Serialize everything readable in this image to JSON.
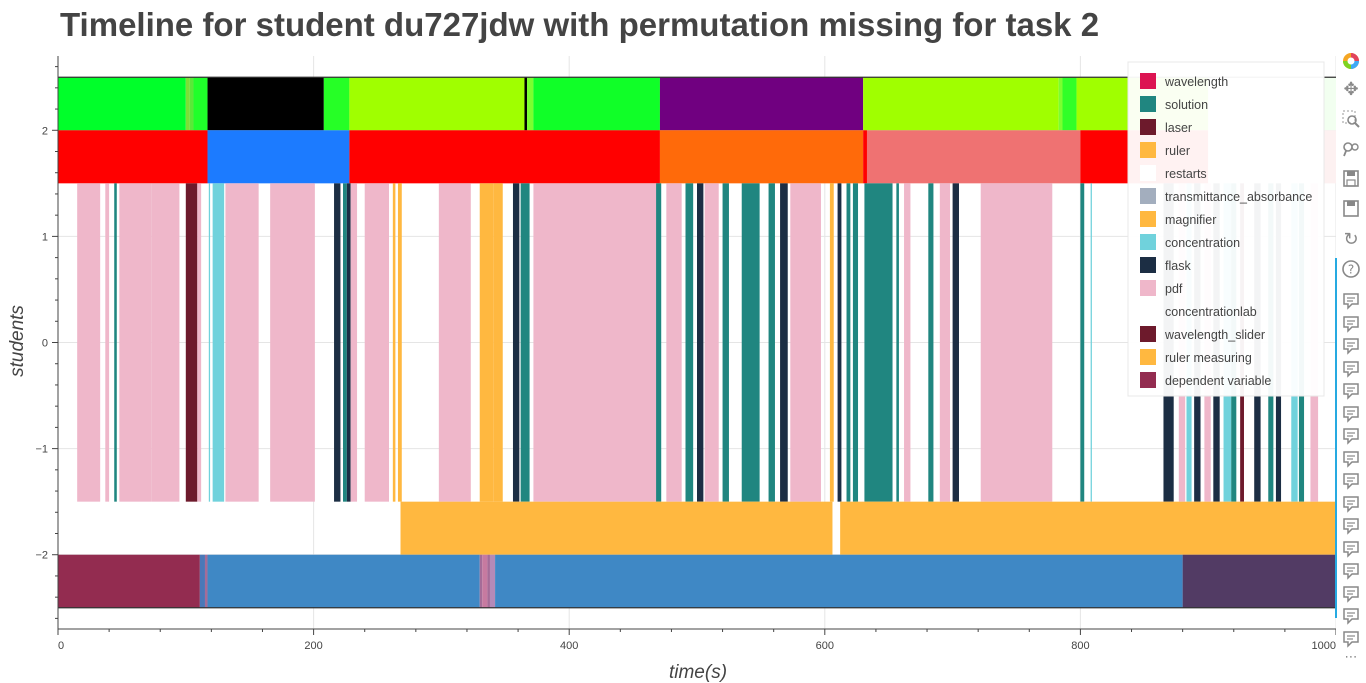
{
  "chart_data": {
    "type": "timeline",
    "title": "Timeline for student du727jdw with permutation missing for task 2",
    "xlabel": "time(s)",
    "ylabel": "students",
    "xlim": [
      0,
      1000
    ],
    "ylim": [
      -2.7,
      2.7
    ],
    "x_ticks": [
      0,
      200,
      400,
      600,
      800,
      1000
    ],
    "y_ticks": [
      -2,
      -1,
      0,
      1,
      2
    ],
    "grid": true,
    "legend_position": "top-right",
    "legend": [
      {
        "label": "wavelength",
        "color": "#dc1452"
      },
      {
        "label": "solution",
        "color": "#208680"
      },
      {
        "label": "laser",
        "color": "#6d1a2c"
      },
      {
        "label": "ruler",
        "color": "#ffb840"
      },
      {
        "label": "restarts",
        "color": "#ffffff"
      },
      {
        "label": "transmittance_absorbance",
        "color": "#a3aebe"
      },
      {
        "label": "magnifier",
        "color": "#ffb840"
      },
      {
        "label": "concentration",
        "color": "#70d2dc"
      },
      {
        "label": "flask",
        "color": "#1c2e44"
      },
      {
        "label": "pdf",
        "color": "#efb7ca"
      },
      {
        "label": "concentrationlab",
        "color": "#ffffff"
      },
      {
        "label": "wavelength_slider",
        "color": "#6d1a2c"
      },
      {
        "label": "ruler measuring",
        "color": "#ffb840"
      },
      {
        "label": "dependent variable",
        "color": "#932c50"
      }
    ],
    "lanes": [
      {
        "y_range": [
          2,
          2.5
        ],
        "segments": [
          {
            "x": [
              0,
              100
            ],
            "color": "#00ff2a"
          },
          {
            "x": [
              100,
              103
            ],
            "color": "#7ddf37"
          },
          {
            "x": [
              103,
              106
            ],
            "color": "#5ae838"
          },
          {
            "x": [
              106,
              117
            ],
            "color": "#1fff2a"
          },
          {
            "x": [
              117,
              208
            ],
            "color": "#000000"
          },
          {
            "x": [
              208,
              228
            ],
            "color": "#26ff26"
          },
          {
            "x": [
              228,
              365
            ],
            "color": "#a0ff00"
          },
          {
            "x": [
              365,
              367
            ],
            "color": "#000000"
          },
          {
            "x": [
              367,
              372
            ],
            "color": "#7aff30"
          },
          {
            "x": [
              372,
              471
            ],
            "color": "#10ff28"
          },
          {
            "x": [
              471,
              630
            ],
            "color": "#700080"
          },
          {
            "x": [
              630,
              783
            ],
            "color": "#a0ff00"
          },
          {
            "x": [
              783,
              786
            ],
            "color": "#7aff30"
          },
          {
            "x": [
              786,
              797
            ],
            "color": "#30ff28"
          },
          {
            "x": [
              797,
              900
            ],
            "color": "#a0ff00"
          },
          {
            "x": [
              900,
              922
            ],
            "color": "#f4f0ff"
          },
          {
            "x": [
              922,
              1000
            ],
            "color": "#f2fff0"
          }
        ]
      },
      {
        "y_range": [
          1.5,
          2
        ],
        "segments": [
          {
            "x": [
              0,
              117
            ],
            "color": "#ff0000"
          },
          {
            "x": [
              117,
              228
            ],
            "color": "#1c7bff"
          },
          {
            "x": [
              228,
              471
            ],
            "color": "#ff0000"
          },
          {
            "x": [
              471,
              630
            ],
            "color": "#ff6a0a"
          },
          {
            "x": [
              630,
              633
            ],
            "color": "#ff0000"
          },
          {
            "x": [
              633,
              800
            ],
            "color": "#ef7272"
          },
          {
            "x": [
              800,
              900
            ],
            "color": "#ff0000"
          },
          {
            "x": [
              900,
              1000
            ],
            "color": "#fdf1f1"
          }
        ]
      },
      {
        "y_range": [
          -1.5,
          1.5
        ],
        "segments": [
          {
            "x": [
              15,
              33
            ],
            "color": "#efb7ca"
          },
          {
            "x": [
              37,
              40
            ],
            "color": "#efb7ca"
          },
          {
            "x": [
              44,
              46
            ],
            "color": "#208680"
          },
          {
            "x": [
              48,
              73
            ],
            "color": "#efb7ca"
          },
          {
            "x": [
              73,
              95
            ],
            "color": "#efb7ca"
          },
          {
            "x": [
              100,
              109
            ],
            "color": "#6d1a2c"
          },
          {
            "x": [
              109,
              112
            ],
            "color": "#efb7ca"
          },
          {
            "x": [
              118,
              119
            ],
            "color": "#70d2dc"
          },
          {
            "x": [
              121,
              130
            ],
            "color": "#70d2dc"
          },
          {
            "x": [
              131,
              157
            ],
            "color": "#efb7ca"
          },
          {
            "x": [
              166,
              201
            ],
            "color": "#efb7ca"
          },
          {
            "x": [
              216,
              221
            ],
            "color": "#1c2e44"
          },
          {
            "x": [
              223,
              226
            ],
            "color": "#208680"
          },
          {
            "x": [
              226,
              229
            ],
            "color": "#1c2e44"
          },
          {
            "x": [
              229,
              234
            ],
            "color": "#efb7ca"
          },
          {
            "x": [
              240,
              259
            ],
            "color": "#efb7ca"
          },
          {
            "x": [
              262,
              264
            ],
            "color": "#ffb840"
          },
          {
            "x": [
              266,
              269
            ],
            "color": "#ffb840"
          },
          {
            "x": [
              298,
              323
            ],
            "color": "#efb7ca"
          },
          {
            "x": [
              330,
              341
            ],
            "color": "#ffb840"
          },
          {
            "x": [
              341,
              348
            ],
            "color": "#ffb840"
          },
          {
            "x": [
              356,
              361
            ],
            "color": "#1c2e44"
          },
          {
            "x": [
              362,
              369
            ],
            "color": "#208680"
          },
          {
            "x": [
              372,
              469
            ],
            "color": "#efb7ca"
          },
          {
            "x": [
              468,
              472
            ],
            "color": "#208680"
          },
          {
            "x": [
              476,
              488
            ],
            "color": "#efb7ca"
          },
          {
            "x": [
              491,
              497
            ],
            "color": "#208680"
          },
          {
            "x": [
              500,
              505
            ],
            "color": "#1c2e44"
          },
          {
            "x": [
              506,
              517
            ],
            "color": "#efb7ca"
          },
          {
            "x": [
              520,
              525
            ],
            "color": "#208680"
          },
          {
            "x": [
              535,
              549
            ],
            "color": "#208680"
          },
          {
            "x": [
              556,
              561
            ],
            "color": "#208680"
          },
          {
            "x": [
              565,
              571
            ],
            "color": "#1c2e44"
          },
          {
            "x": [
              573,
              597
            ],
            "color": "#efb7ca"
          },
          {
            "x": [
              604,
              607
            ],
            "color": "#ffb840"
          },
          {
            "x": [
              610,
              613
            ],
            "color": "#1c2e44"
          },
          {
            "x": [
              617,
              620
            ],
            "color": "#208680"
          },
          {
            "x": [
              622,
              626
            ],
            "color": "#208680"
          },
          {
            "x": [
              631,
              653
            ],
            "color": "#208680"
          },
          {
            "x": [
              656,
              658
            ],
            "color": "#208680"
          },
          {
            "x": [
              662,
              667
            ],
            "color": "#efb7ca"
          },
          {
            "x": [
              681,
              685
            ],
            "color": "#208680"
          },
          {
            "x": [
              690,
              698
            ],
            "color": "#efb7ca"
          },
          {
            "x": [
              700,
              705
            ],
            "color": "#1c2e44"
          },
          {
            "x": [
              722,
              778
            ],
            "color": "#efb7ca"
          },
          {
            "x": [
              800,
              803
            ],
            "color": "#208680"
          },
          {
            "x": [
              808,
              809
            ],
            "color": "#70d2dc"
          },
          {
            "x": [
              865,
              873
            ],
            "color": "#1c2e44"
          },
          {
            "x": [
              877,
              882
            ],
            "color": "#efb7ca"
          },
          {
            "x": [
              883,
              887
            ],
            "color": "#70d2dc"
          },
          {
            "x": [
              889,
              894
            ],
            "color": "#1c2e44"
          },
          {
            "x": [
              897,
              902
            ],
            "color": "#efb7ca"
          },
          {
            "x": [
              904,
              909
            ],
            "color": "#1c2e44"
          },
          {
            "x": [
              912,
              918
            ],
            "color": "#70d2dc"
          },
          {
            "x": [
              918,
              922
            ],
            "color": "#208680"
          },
          {
            "x": [
              925,
              928
            ],
            "color": "#6d1a2c"
          },
          {
            "x": [
              936,
              941
            ],
            "color": "#1c2e44"
          },
          {
            "x": [
              947,
              951
            ],
            "color": "#208680"
          },
          {
            "x": [
              953,
              957
            ],
            "color": "#1c2e44"
          },
          {
            "x": [
              965,
              970
            ],
            "color": "#70d2dc"
          },
          {
            "x": [
              971,
              975
            ],
            "color": "#208680"
          },
          {
            "x": [
              980,
              986
            ],
            "color": "#efb7ca"
          }
        ]
      },
      {
        "y_range": [
          -2,
          -1.5
        ],
        "segments": [
          {
            "x": [
              268,
              606
            ],
            "color": "#ffb840"
          },
          {
            "x": [
              612,
              1000
            ],
            "color": "#ffb840"
          }
        ]
      },
      {
        "y_range": [
          -2.5,
          -2
        ],
        "segments": [
          {
            "x": [
              0,
              111
            ],
            "color": "#932c50"
          },
          {
            "x": [
              111,
              115
            ],
            "color": "#4a78b8"
          },
          {
            "x": [
              115,
              117
            ],
            "color": "#a56c98"
          },
          {
            "x": [
              117,
              330
            ],
            "color": "#3f88c5"
          },
          {
            "x": [
              330,
              332
            ],
            "color": "#a56c98"
          },
          {
            "x": [
              332,
              336
            ],
            "color": "#c77aa0"
          },
          {
            "x": [
              336,
              338
            ],
            "color": "#a56c98"
          },
          {
            "x": [
              338,
              342
            ],
            "color": "#b48ab8"
          },
          {
            "x": [
              342,
              880
            ],
            "color": "#3f88c5"
          },
          {
            "x": [
              880,
              1000
            ],
            "color": "#523b64"
          }
        ]
      }
    ]
  },
  "toolbar": [
    {
      "name": "bokeh-logo-icon",
      "glyph": "logo"
    },
    {
      "name": "pan-icon",
      "glyph": "✥"
    },
    {
      "name": "box-zoom-icon",
      "glyph": "box-zoom"
    },
    {
      "name": "wheel-zoom-icon",
      "glyph": "wheel-zoom"
    },
    {
      "name": "lasso-select-icon",
      "glyph": "lasso"
    },
    {
      "name": "save-icon",
      "glyph": "save"
    },
    {
      "name": "reset-icon",
      "glyph": "↻"
    },
    {
      "name": "help-icon",
      "glyph": "?"
    }
  ],
  "toolbar_hover_count": 16,
  "toolbar_more": "⋯"
}
